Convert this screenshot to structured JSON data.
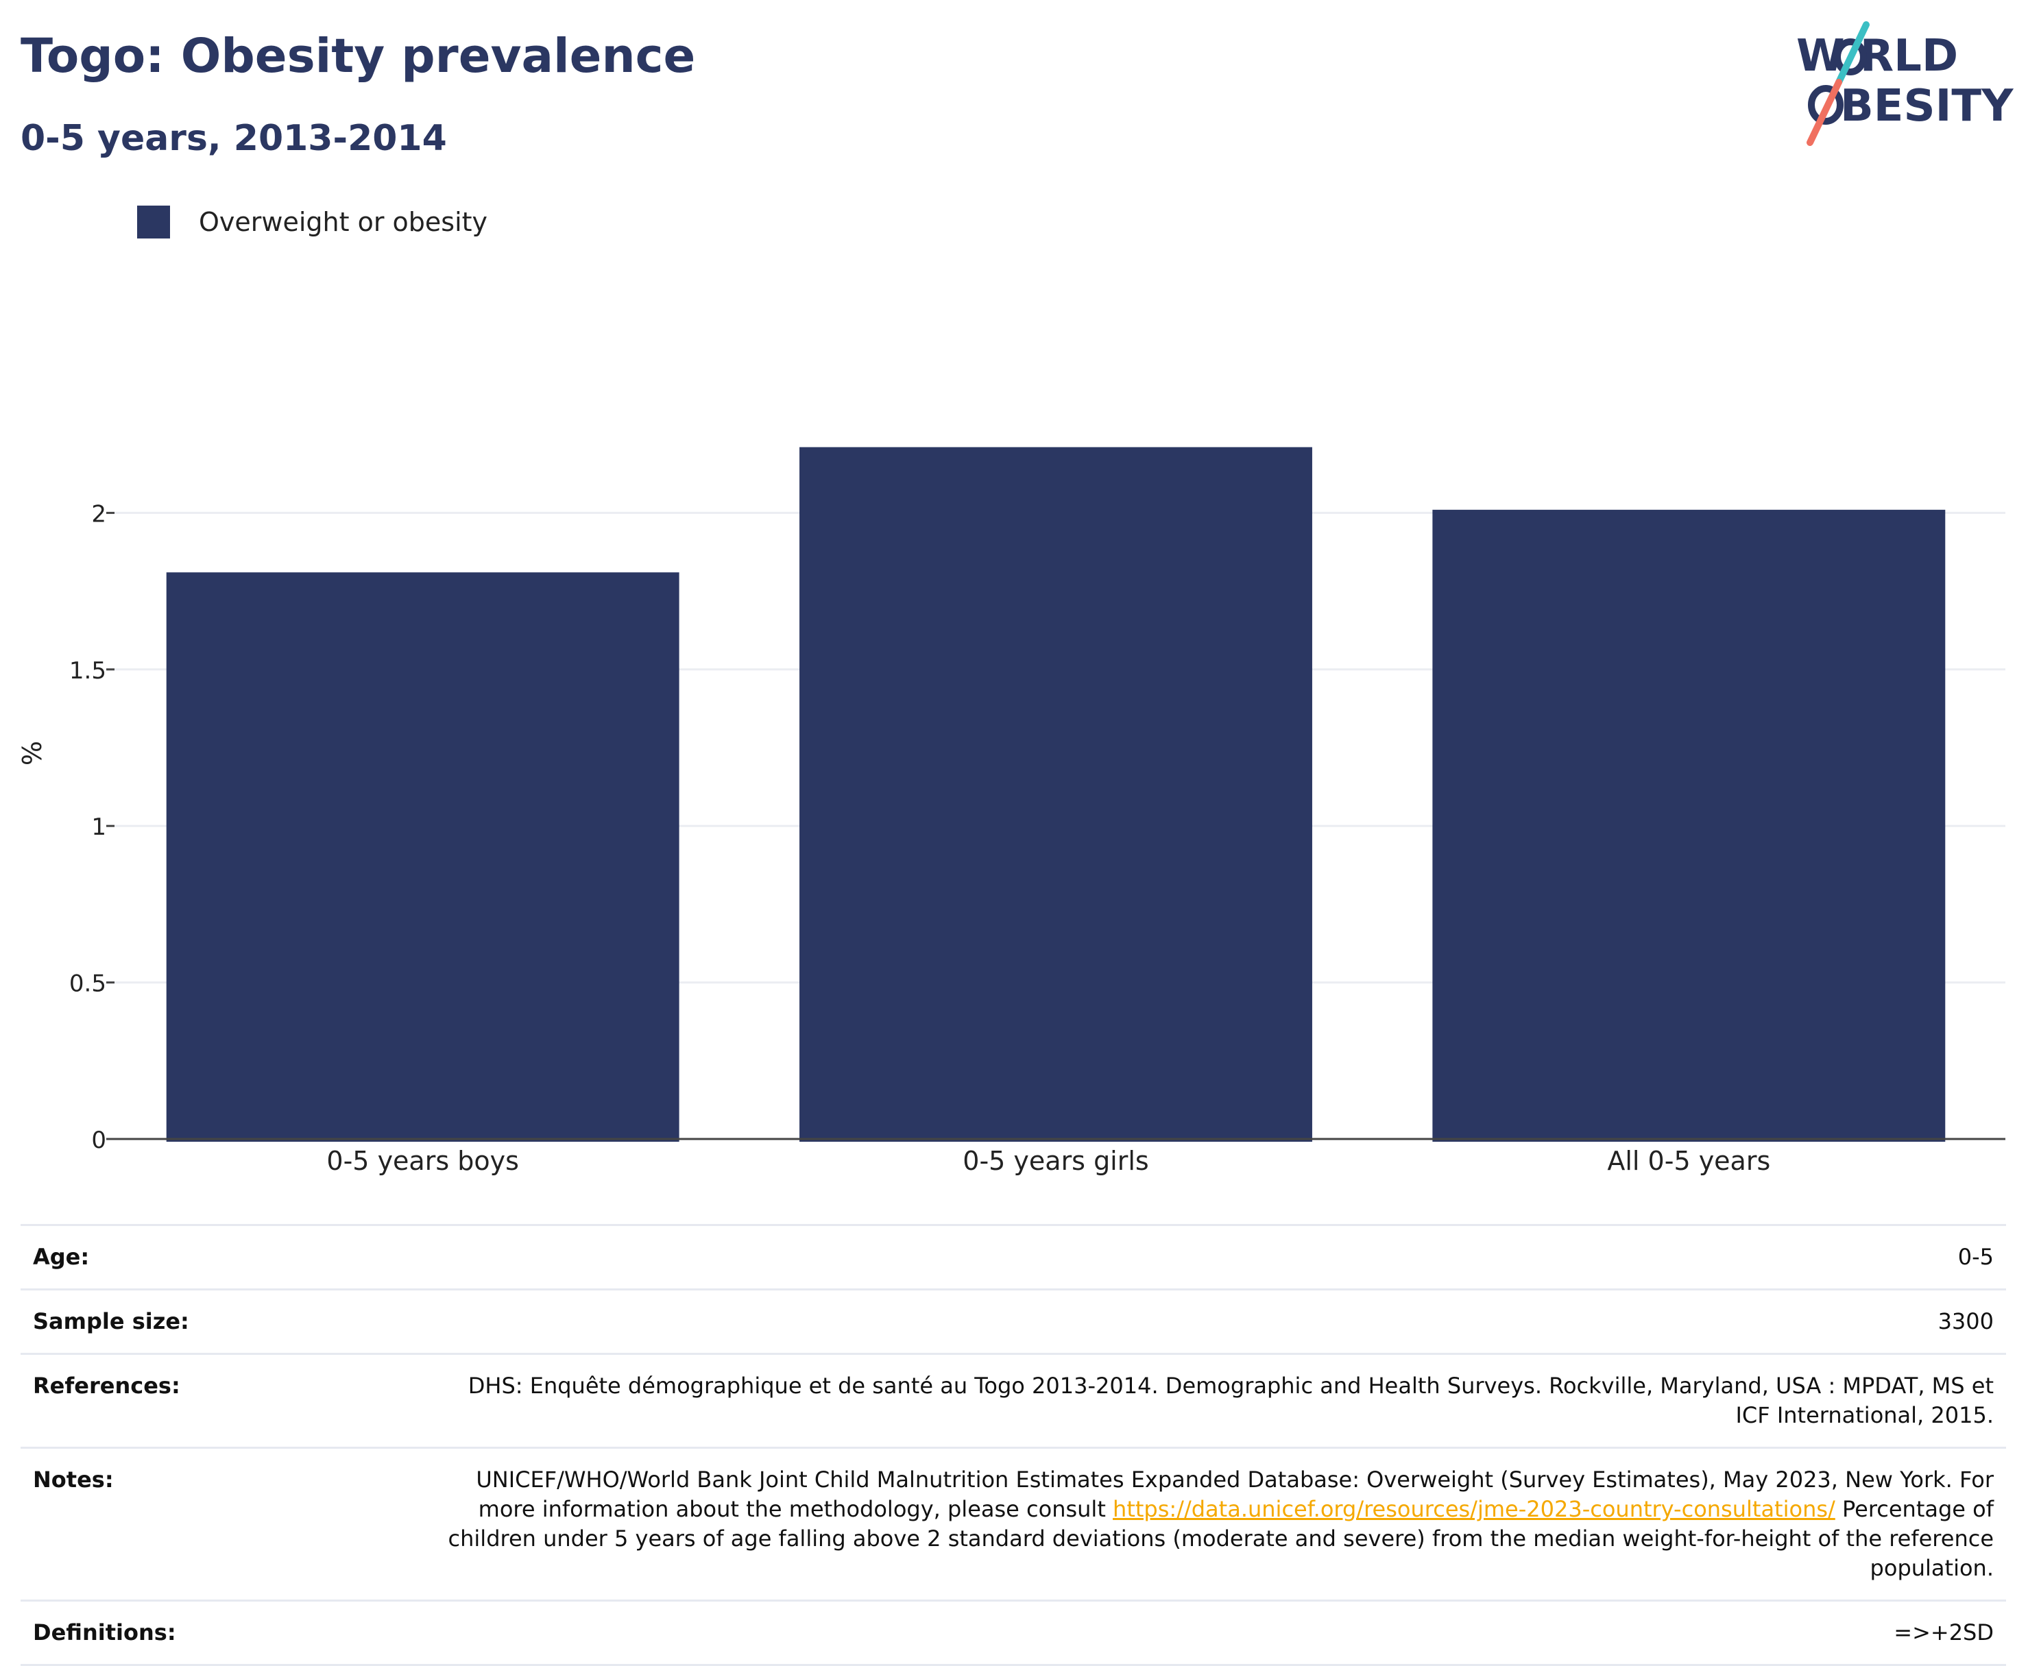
{
  "header": {
    "title": "Togo: Obesity prevalence",
    "subtitle": "0-5 years, 2013-2014"
  },
  "logo": {
    "line1": "W RLD",
    "line2": "BESITY",
    "text": "WORLD OBESITY",
    "colors": {
      "text": "#2b3762",
      "slash_top": "#3bbfc4",
      "slash_bottom": "#f07060"
    }
  },
  "colors": {
    "bar": "#2b3762",
    "grid": "#ebedf2",
    "axis": "#444444",
    "link": "#f5a800"
  },
  "chart_data": {
    "type": "bar",
    "categories": [
      "0-5 years boys",
      "0-5 years girls",
      "All 0-5 years"
    ],
    "series": [
      {
        "name": "Overweight or obesity",
        "values": [
          1.81,
          2.21,
          2.01
        ]
      }
    ],
    "ylabel": "%",
    "ylim": [
      0,
      2.5
    ],
    "yticks": [
      "0",
      "0.5",
      "1",
      "1.5",
      "2"
    ],
    "grid": true,
    "legend_position": "top-left"
  },
  "info": {
    "age": {
      "label": "Age:",
      "value": "0-5"
    },
    "sample_size": {
      "label": "Sample size:",
      "value": "3300"
    },
    "references": {
      "label": "References:",
      "value": "DHS: Enquête démographique et de santé au Togo 2013-2014. Demographic and Health Surveys. Rockville, Maryland, USA : MPDAT, MS et ICF International, 2015."
    },
    "notes": {
      "label": "Notes:",
      "text_before": "UNICEF/WHO/World Bank Joint Child Malnutrition Estimates Expanded Database: Overweight (Survey Estimates), May 2023, New York. For more information about the methodology, please consult ",
      "link": "https://data.unicef.org/resources/jme-2023-country-consultations/",
      "text_after": " Percentage of children under 5 years of age falling above 2 standard deviations (moderate and severe) from the median weight-for-height of the reference population."
    },
    "definitions": {
      "label": "Definitions:",
      "value": "=>+2SD"
    }
  }
}
